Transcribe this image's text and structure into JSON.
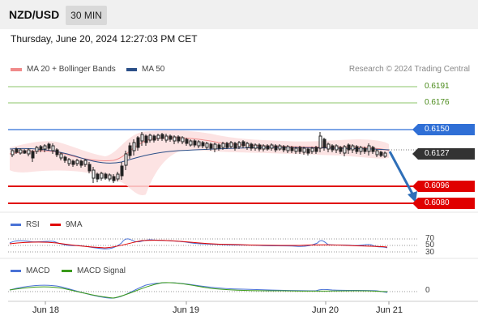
{
  "header": {
    "pair": "NZD/USD",
    "timeframe": "30 MIN"
  },
  "datetime": "Thursday, June 20, 2024 12:27:03 PM CET",
  "legend": {
    "ma20_bb": {
      "label": "MA 20 + Bollinger Bands",
      "color": "#f08a8a"
    },
    "ma50": {
      "label": "MA 50",
      "color": "#2b4f88"
    }
  },
  "credit": "Research © 2024 Trading Central",
  "price_levels": {
    "r2": "0.6191",
    "r1": "0.6176",
    "pivot": "0.6150",
    "last": "0.6127",
    "s1": "0.6096",
    "s2": "0.6080"
  },
  "rsi": {
    "label": "RSI",
    "ma_label": "9MA",
    "levels": [
      "70",
      "50",
      "30"
    ],
    "colors": {
      "rsi": "#4a72d6",
      "ma": "#e00000"
    }
  },
  "macd": {
    "label": "MACD",
    "signal_label": "MACD Signal",
    "zero": "0",
    "colors": {
      "macd": "#4a72d6",
      "signal": "#3a9a1a"
    }
  },
  "x_axis": [
    "Jun 18",
    "Jun 19",
    "Jun 20",
    "Jun 21"
  ],
  "colors": {
    "green": "#4a8a1a",
    "blue": "#2f6fd6",
    "red": "#e00000",
    "dark": "#333333",
    "arrow": "#2f6fb8"
  }
}
